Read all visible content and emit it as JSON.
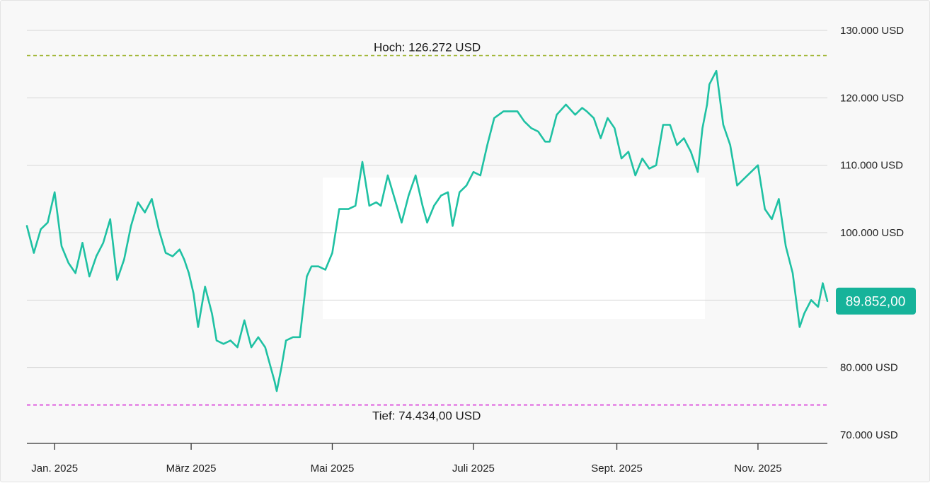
{
  "chart_data": {
    "type": "line",
    "title": "",
    "xlabel": "",
    "ylabel": "",
    "currency": "USD",
    "ylim": [
      70000,
      130000
    ],
    "y_ticks": [
      {
        "value": 130000,
        "label": "130.000 USD"
      },
      {
        "value": 120000,
        "label": "120.000 USD"
      },
      {
        "value": 110000,
        "label": "110.000 USD"
      },
      {
        "value": 100000,
        "label": "100.000 USD"
      },
      {
        "value": 80000,
        "label": "80.000 USD"
      },
      {
        "value": 70000,
        "label": "70.000 USD"
      }
    ],
    "y_gridlines": [
      130000,
      120000,
      110000,
      100000,
      90000,
      80000
    ],
    "x_range": [
      "2024-12-20",
      "2025-12-01"
    ],
    "x_ticks": [
      {
        "date": "2025-01-01",
        "label": "Jan. 2025"
      },
      {
        "date": "2025-03-01",
        "label": "März 2025"
      },
      {
        "date": "2025-05-01",
        "label": "Mai 2025"
      },
      {
        "date": "2025-07-01",
        "label": "Juli 2025"
      },
      {
        "date": "2025-09-01",
        "label": "Sept. 2025"
      },
      {
        "date": "2025-11-01",
        "label": "Nov. 2025"
      }
    ],
    "high": {
      "value": 126272,
      "label": "Hoch: 126.272 USD",
      "color": "#a3b83a"
    },
    "low": {
      "value": 74434,
      "label": "Tief: 74.434,00 USD",
      "color": "#d93fd9"
    },
    "current": {
      "value": 89852,
      "label": "89.852,00",
      "color": "#16b39a"
    },
    "series": [
      {
        "color": "#1fc1a3",
        "x": [
          "2024-12-20",
          "2024-12-23",
          "2024-12-26",
          "2024-12-29",
          "2025-01-01",
          "2025-01-04",
          "2025-01-07",
          "2025-01-10",
          "2025-01-13",
          "2025-01-16",
          "2025-01-19",
          "2025-01-22",
          "2025-01-25",
          "2025-01-28",
          "2025-01-31",
          "2025-02-03",
          "2025-02-06",
          "2025-02-09",
          "2025-02-12",
          "2025-02-15",
          "2025-02-18",
          "2025-02-21",
          "2025-02-24",
          "2025-02-26",
          "2025-02-28",
          "2025-03-02",
          "2025-03-04",
          "2025-03-07",
          "2025-03-10",
          "2025-03-12",
          "2025-03-15",
          "2025-03-18",
          "2025-03-21",
          "2025-03-24",
          "2025-03-27",
          "2025-03-30",
          "2025-04-02",
          "2025-04-06",
          "2025-04-07",
          "2025-04-09",
          "2025-04-11",
          "2025-04-14",
          "2025-04-17",
          "2025-04-20",
          "2025-04-22",
          "2025-04-25",
          "2025-04-28",
          "2025-05-01",
          "2025-05-04",
          "2025-05-08",
          "2025-05-11",
          "2025-05-14",
          "2025-05-17",
          "2025-05-20",
          "2025-05-22",
          "2025-05-25",
          "2025-05-28",
          "2025-05-31",
          "2025-06-03",
          "2025-06-06",
          "2025-06-09",
          "2025-06-11",
          "2025-06-14",
          "2025-06-17",
          "2025-06-20",
          "2025-06-22",
          "2025-06-25",
          "2025-06-28",
          "2025-07-01",
          "2025-07-04",
          "2025-07-07",
          "2025-07-10",
          "2025-07-14",
          "2025-07-17",
          "2025-07-20",
          "2025-07-23",
          "2025-07-26",
          "2025-07-29",
          "2025-08-01",
          "2025-08-03",
          "2025-08-06",
          "2025-08-10",
          "2025-08-14",
          "2025-08-17",
          "2025-08-19",
          "2025-08-22",
          "2025-08-25",
          "2025-08-28",
          "2025-08-31",
          "2025-09-03",
          "2025-09-06",
          "2025-09-09",
          "2025-09-12",
          "2025-09-15",
          "2025-09-18",
          "2025-09-21",
          "2025-09-24",
          "2025-09-27",
          "2025-09-30",
          "2025-10-03",
          "2025-10-06",
          "2025-10-08",
          "2025-10-10",
          "2025-10-11",
          "2025-10-14",
          "2025-10-17",
          "2025-10-20",
          "2025-10-23",
          "2025-10-26",
          "2025-10-29",
          "2025-11-01",
          "2025-11-04",
          "2025-11-07",
          "2025-11-10",
          "2025-11-13",
          "2025-11-16",
          "2025-11-19",
          "2025-11-21",
          "2025-11-24",
          "2025-11-27",
          "2025-11-29",
          "2025-12-01"
        ],
        "y": [
          101000,
          97000,
          100500,
          101500,
          106000,
          98000,
          95500,
          94000,
          98500,
          93500,
          96500,
          98500,
          102000,
          93000,
          96000,
          101000,
          104500,
          103000,
          105000,
          100500,
          97000,
          96500,
          97500,
          96000,
          94000,
          91000,
          86000,
          92000,
          88000,
          84000,
          83500,
          84000,
          83000,
          87000,
          83000,
          84500,
          83000,
          78000,
          76500,
          80000,
          84000,
          84500,
          84500,
          93500,
          95000,
          95000,
          94500,
          97000,
          103500,
          103500,
          104000,
          110500,
          104000,
          104500,
          104000,
          108500,
          105000,
          101500,
          105500,
          108500,
          104000,
          101500,
          104000,
          105500,
          106000,
          101000,
          106000,
          107000,
          109000,
          108500,
          113000,
          117000,
          118000,
          118000,
          118000,
          116500,
          115500,
          115000,
          113500,
          113500,
          117500,
          119000,
          117500,
          118500,
          118000,
          117000,
          114000,
          117000,
          115500,
          111000,
          112000,
          108500,
          111000,
          109500,
          110000,
          116000,
          116000,
          113000,
          114000,
          112000,
          109000,
          115500,
          119000,
          122000,
          124000,
          116000,
          113000,
          107000,
          108000,
          109000,
          110000,
          103500,
          102000,
          105000,
          98000,
          94000,
          86000,
          88000,
          90000,
          89000,
          92500,
          89852
        ]
      }
    ]
  }
}
